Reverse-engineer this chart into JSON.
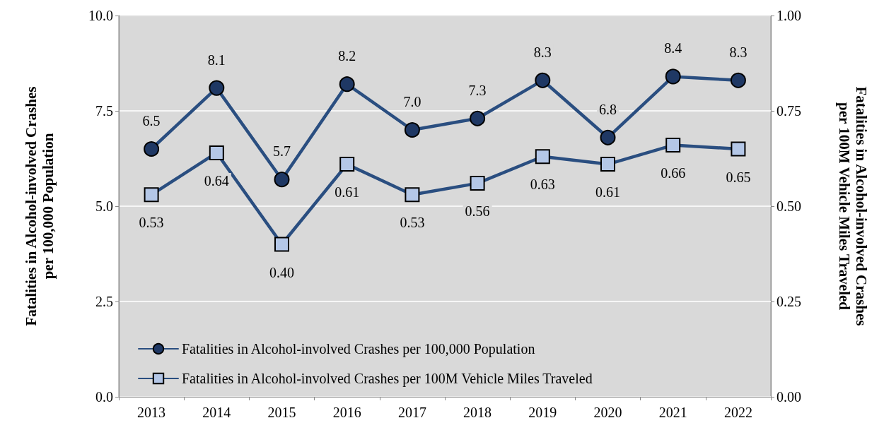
{
  "chart_data": {
    "type": "line",
    "categories": [
      "2013",
      "2014",
      "2015",
      "2016",
      "2017",
      "2018",
      "2019",
      "2020",
      "2021",
      "2022"
    ],
    "ylabel": "Fatalities in Alcohol-involved Crashes per 100,000 Population",
    "y2label": "Fatalities in Alcohol-involved Crashes per 100M Vehicle Miles Traveled",
    "series": [
      {
        "name": "Fatalities in Alcohol-involved Crashes per 100,000 Population",
        "color": "#2a4e80",
        "marker": "circle",
        "values": [
          6.5,
          8.1,
          5.7,
          8.2,
          7.0,
          7.3,
          8.3,
          6.8,
          8.4,
          8.3
        ],
        "value_labels": [
          "6.5",
          "8.1",
          "5.7",
          "8.2",
          "7.0",
          "7.3",
          "8.3",
          "6.8",
          "8.4",
          "8.3"
        ]
      },
      {
        "name": "Fatalities in Alcohol-involved Crashes per 100M Vehicle Miles Traveled",
        "color": "#2a4e80",
        "marker": "square",
        "axis": "y2",
        "values": [
          0.53,
          0.64,
          0.4,
          0.61,
          0.53,
          0.56,
          0.63,
          0.61,
          0.66,
          0.65
        ],
        "value_labels": [
          "0.53",
          "0.64",
          "0.40",
          "0.61",
          "0.53",
          "0.56",
          "0.63",
          "0.61",
          "0.66",
          "0.65"
        ]
      }
    ],
    "ylim": [
      0,
      10
    ],
    "yticks": [
      {
        "value": 0,
        "label": "0.0"
      },
      2.5,
      {
        "value": 5,
        "label": "5.0"
      },
      7.5,
      {
        "value": 10,
        "label": "10.0"
      }
    ],
    "y2lim": [
      0,
      1
    ],
    "y2ticks": [
      {
        "value": 0,
        "label": "0.00"
      },
      0.25,
      {
        "value": 0.5,
        "label": "0.50"
      },
      0.75,
      {
        "value": 1,
        "label": "1.00"
      }
    ],
    "grid": "y",
    "legend": "bottom left"
  }
}
